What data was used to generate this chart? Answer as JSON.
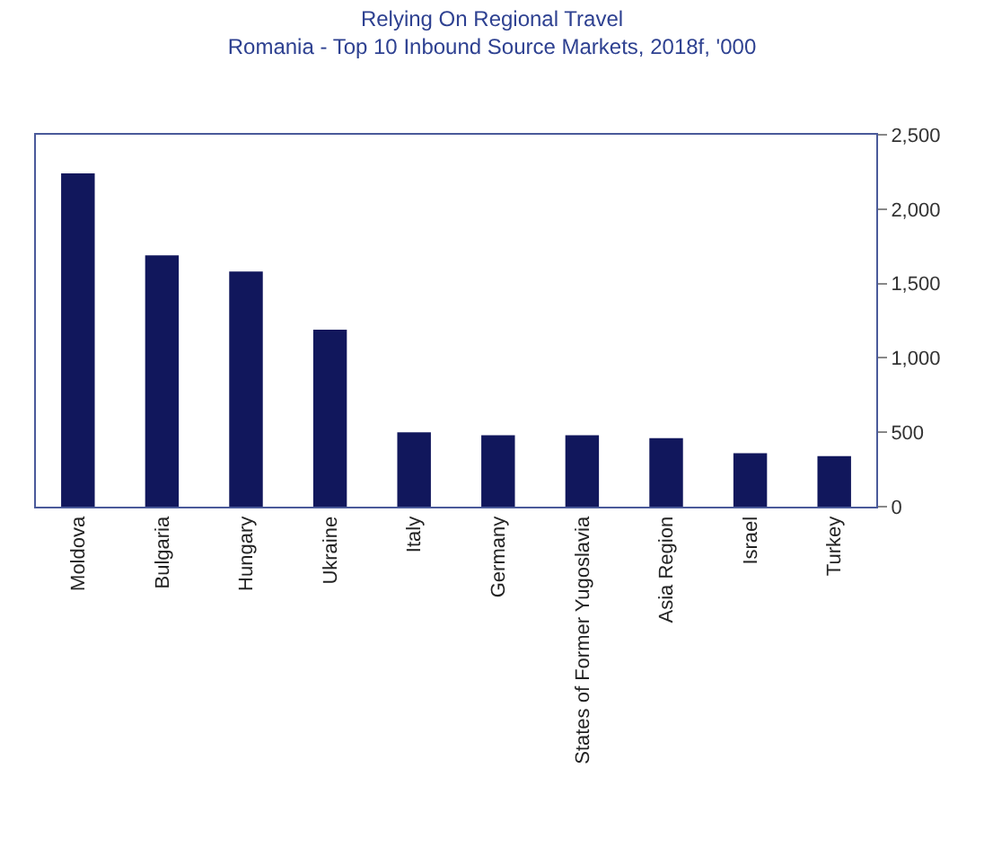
{
  "chart_data": {
    "type": "bar",
    "title": "Relying On Regional Travel",
    "subtitle": "Romania - Top 10 Inbound Source Markets, 2018f, '000",
    "categories": [
      "Moldova",
      "Bulgaria",
      "Hungary",
      "Ukraine",
      "Italy",
      "Germany",
      "States of Former Yugoslavia",
      "Asia Region",
      "Israel",
      "Turkey"
    ],
    "values": [
      2240,
      1690,
      1580,
      1190,
      500,
      480,
      480,
      460,
      360,
      340
    ],
    "color": "#11175c",
    "ylim": [
      0,
      2500
    ],
    "yticks": [
      0,
      {
        "value": 500,
        "label": "500"
      },
      {
        "value": 1000,
        "label": "1,000"
      },
      {
        "value": 1500,
        "label": "1,500"
      },
      {
        "value": 2000,
        "label": "2,000"
      },
      {
        "value": 2500,
        "label": "2,500"
      }
    ],
    "grid": false,
    "legend": false
  }
}
